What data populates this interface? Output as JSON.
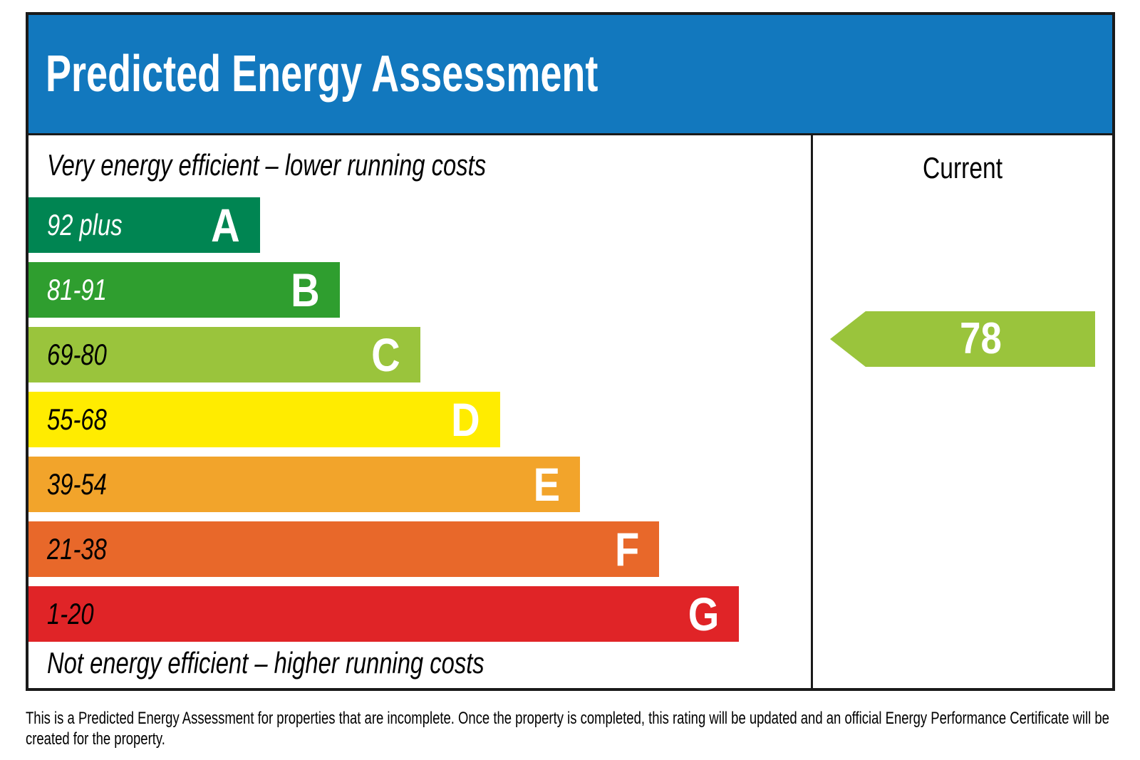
{
  "header": {
    "title": "Predicted Energy Assessment",
    "bg_color": "#1278be"
  },
  "chart": {
    "top_label": "Very energy efficient – lower running costs",
    "bottom_label": "Not energy efficient – higher running costs",
    "bands": [
      {
        "letter": "A",
        "range": "92 plus",
        "color": "#008552",
        "width_pct": "29.6%",
        "text_color": "#ffffff"
      },
      {
        "letter": "B",
        "range": "81-91",
        "color": "#2f9e2f",
        "width_pct": "39.8%",
        "text_color": "#ffffff"
      },
      {
        "letter": "C",
        "range": "69-80",
        "color": "#9ac43c",
        "width_pct": "50.1%",
        "text_color": "#000000"
      },
      {
        "letter": "D",
        "range": "55-68",
        "color": "#ffec00",
        "width_pct": "60.3%",
        "text_color": "#000000"
      },
      {
        "letter": "E",
        "range": "39-54",
        "color": "#f2a42b",
        "width_pct": "70.5%",
        "text_color": "#000000"
      },
      {
        "letter": "F",
        "range": "21-38",
        "color": "#e8682a",
        "width_pct": "80.6%",
        "text_color": "#000000"
      },
      {
        "letter": "G",
        "range": "1-20",
        "color": "#e02427",
        "width_pct": "90.8%",
        "text_color": "#000000"
      }
    ]
  },
  "current": {
    "column_label": "Current",
    "value": "78",
    "arrow_color": "#9ac43c"
  },
  "footnote": "This is a Predicted Energy Assessment for properties that are incomplete. Once the property is completed, this rating will be updated and an official Energy Performance Certificate will be created for the property.",
  "chart_data": {
    "type": "bar",
    "orientation": "horizontal",
    "title": "Predicted Energy Assessment",
    "categories": [
      "A",
      "B",
      "C",
      "D",
      "E",
      "F",
      "G"
    ],
    "band_score_ranges": [
      "92 plus",
      "81-91",
      "69-80",
      "55-68",
      "39-54",
      "21-38",
      "1-20"
    ],
    "bar_lengths_pct_of_panel": [
      29.6,
      39.8,
      50.1,
      60.3,
      70.5,
      80.6,
      90.8
    ],
    "bar_colors": [
      "#008552",
      "#2f9e2f",
      "#9ac43c",
      "#ffec00",
      "#f2a42b",
      "#e8682a",
      "#e02427"
    ],
    "annotations": [
      "Very energy efficient – lower running costs",
      "Not energy efficient – higher running costs"
    ],
    "current_rating": {
      "value": 78,
      "band": "C",
      "column_label": "Current",
      "arrow_color": "#9ac43c"
    },
    "legend_position": "none",
    "grid": false
  }
}
